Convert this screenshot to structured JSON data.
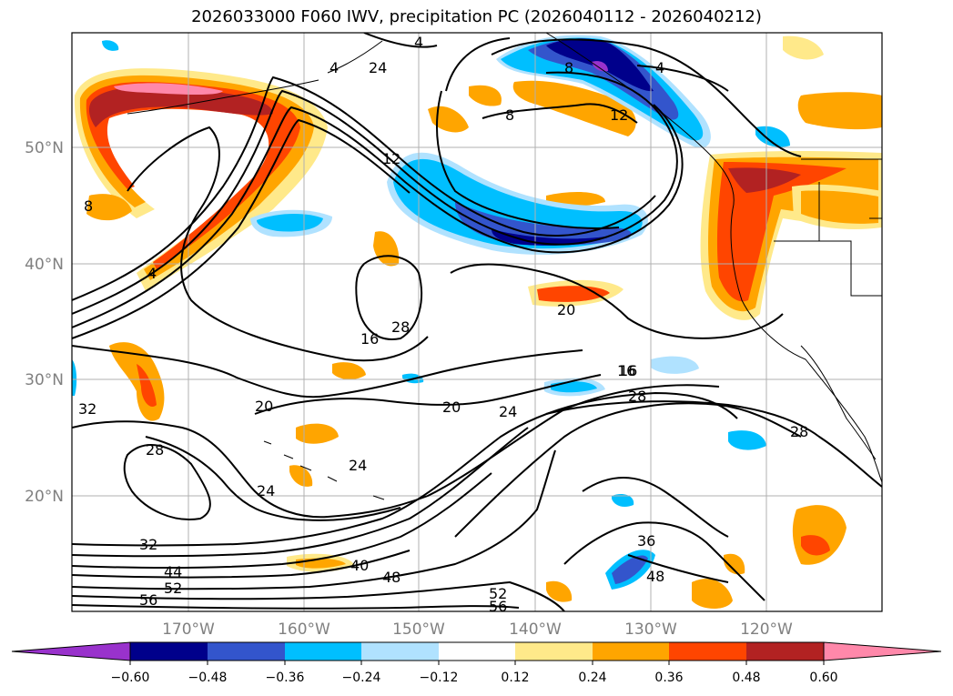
{
  "title": "2026033000 F060 IWV, precipitation PC (2026040112 - 2026040212)",
  "map": {
    "lon_ticks": [
      "170°W",
      "160°W",
      "150°W",
      "140°W",
      "130°W",
      "120°W"
    ],
    "lat_ticks": [
      "50°N",
      "40°N",
      "30°N",
      "20°N"
    ],
    "gridlines": true
  },
  "colorbar": {
    "orientation": "horizontal",
    "extend": "both",
    "tick_labels": [
      "−0.60",
      "−0.48",
      "−0.36",
      "−0.24",
      "−0.12",
      "0.12",
      "0.24",
      "0.36",
      "0.48",
      "0.60"
    ],
    "colors": [
      "#9932cc",
      "#00008b",
      "#3355cc",
      "#00bfff",
      "#b0e2ff",
      "#ffffff",
      "#ffe98a",
      "#ffa500",
      "#ff4500",
      "#b22222",
      "#ff88aa"
    ]
  },
  "contour_labels": [
    "4",
    "4",
    "24",
    "4",
    "8",
    "8",
    "12",
    "12",
    "8",
    "4",
    "16",
    "16",
    "20",
    "16",
    "20",
    "20",
    "24",
    "28",
    "28",
    "32",
    "28",
    "24",
    "24",
    "32",
    "44",
    "52",
    "56",
    "40",
    "48",
    "36",
    "48",
    "52",
    "56",
    "28"
  ]
}
